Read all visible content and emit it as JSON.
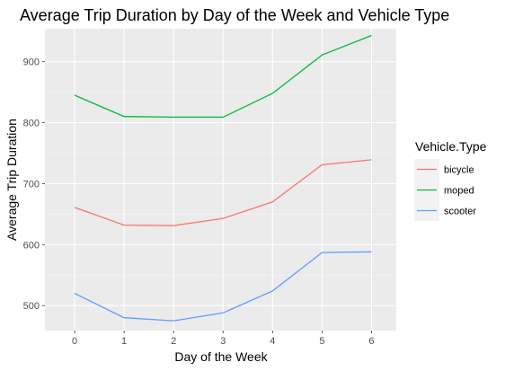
{
  "chart_data": {
    "type": "line",
    "title": "Average Trip Duration by Day of the Week and Vehicle Type",
    "xlabel": "Day of the Week",
    "ylabel": "Average Trip Duration",
    "x": [
      0,
      1,
      2,
      3,
      4,
      5,
      6
    ],
    "x_ticks": [
      "0",
      "1",
      "2",
      "3",
      "4",
      "5",
      "6"
    ],
    "y_ticks": [
      500,
      600,
      700,
      800,
      900
    ],
    "xlim": [
      -0.6,
      6.5
    ],
    "ylim": [
      459,
      954
    ],
    "grid": true,
    "legend": {
      "title": "Vehicle.Type",
      "position": "right"
    },
    "series": [
      {
        "name": "bicycle",
        "color": "#F8766D",
        "values": [
          661,
          632,
          631,
          643,
          670,
          731,
          739
        ]
      },
      {
        "name": "moped",
        "color": "#00BA38",
        "values": [
          845,
          810,
          809,
          809,
          848,
          911,
          943
        ]
      },
      {
        "name": "scooter",
        "color": "#619CFF",
        "values": [
          520,
          480,
          475,
          488,
          524,
          587,
          588
        ]
      }
    ]
  }
}
